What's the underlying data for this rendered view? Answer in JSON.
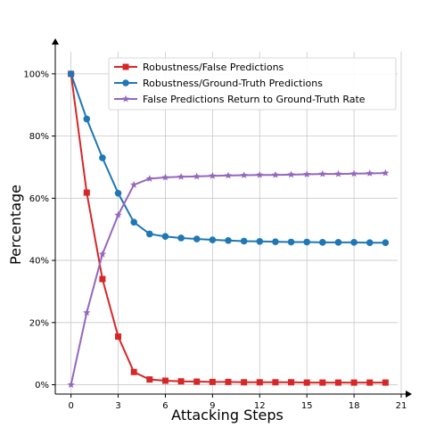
{
  "chart_data": {
    "type": "line",
    "title": "",
    "xlabel": "Attacking Steps",
    "ylabel": "Percentage",
    "xlim": [
      -1,
      21
    ],
    "ylim": [
      -3,
      110
    ],
    "xticks": [
      0,
      3,
      6,
      9,
      12,
      15,
      18,
      21
    ],
    "yticks": [
      0,
      20,
      40,
      60,
      80,
      100
    ],
    "ytick_suffix": "%",
    "grid": true,
    "legend_position": "top-right",
    "x": [
      0,
      1,
      2,
      3,
      4,
      5,
      6,
      7,
      8,
      9,
      10,
      11,
      12,
      13,
      14,
      15,
      16,
      17,
      18,
      19,
      20
    ],
    "series": [
      {
        "name": "Robustness/False Predictions",
        "color": "#d62728",
        "marker": "square",
        "values": [
          100,
          61.8,
          34,
          15.5,
          4.1,
          1.7,
          1.3,
          1.1,
          1.0,
          0.9,
          0.9,
          0.8,
          0.8,
          0.8,
          0.8,
          0.7,
          0.7,
          0.7,
          0.7,
          0.7,
          0.7
        ]
      },
      {
        "name": "Robustness/Ground-Truth Predictions",
        "color": "#1f77b4",
        "marker": "circle",
        "values": [
          100,
          85.5,
          73,
          61.6,
          52.3,
          48.5,
          47.7,
          47.2,
          46.9,
          46.6,
          46.4,
          46.2,
          46.1,
          46.0,
          45.9,
          45.9,
          45.8,
          45.8,
          45.8,
          45.7,
          45.7
        ]
      },
      {
        "name": "False Predictions Return to Ground-Truth Rate",
        "color": "#9467bd",
        "marker": "star",
        "values": [
          0,
          23.2,
          42,
          54.6,
          64.3,
          66.3,
          66.7,
          66.9,
          67.0,
          67.2,
          67.3,
          67.4,
          67.5,
          67.5,
          67.6,
          67.7,
          67.8,
          67.8,
          67.9,
          68.0,
          68.1
        ]
      }
    ]
  }
}
